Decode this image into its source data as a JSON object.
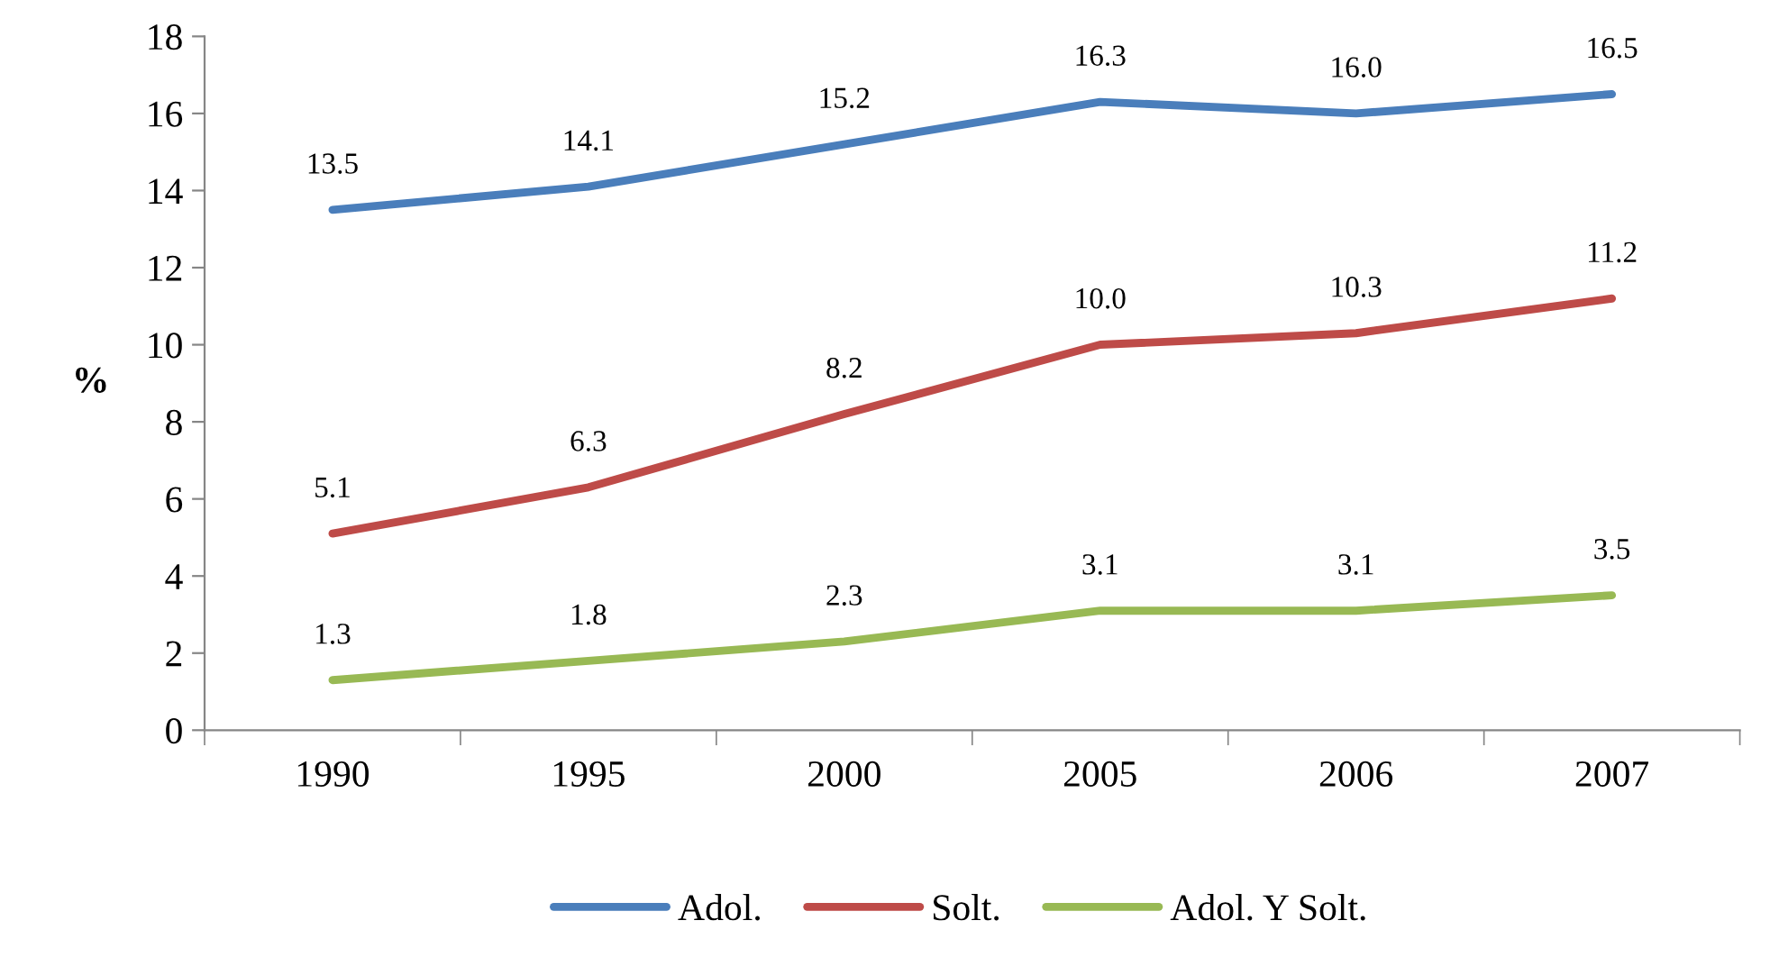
{
  "chart_data": {
    "type": "line",
    "ylabel": "%",
    "categories": [
      "1990",
      "1995",
      "2000",
      "2005",
      "2006",
      "2007"
    ],
    "series": [
      {
        "name": "Adol.",
        "color": "#4a7ebb",
        "values": [
          13.5,
          14.1,
          15.2,
          16.3,
          16.0,
          16.5
        ],
        "value_labels": [
          "13.5",
          "14.1",
          "15.2",
          "16.3",
          "16.0",
          "16.5"
        ]
      },
      {
        "name": "Solt.",
        "color": "#be4b48",
        "values": [
          5.1,
          6.3,
          8.2,
          10.0,
          10.3,
          11.2
        ],
        "value_labels": [
          "5.1",
          "6.3",
          "8.2",
          "10.0",
          "10.3",
          "11.2"
        ]
      },
      {
        "name": "Adol. Y Solt.",
        "color": "#98b954",
        "values": [
          1.3,
          1.8,
          2.3,
          3.1,
          3.1,
          3.5
        ],
        "value_labels": [
          "1.3",
          "1.8",
          "2.3",
          "3.1",
          "3.1",
          "3.5"
        ]
      }
    ],
    "ylim": [
      0,
      18
    ],
    "yticks": [
      0,
      2,
      4,
      6,
      8,
      10,
      12,
      14,
      16,
      18
    ],
    "grid": false,
    "legend": "bottom",
    "marker": "none",
    "line_style": "solid"
  }
}
